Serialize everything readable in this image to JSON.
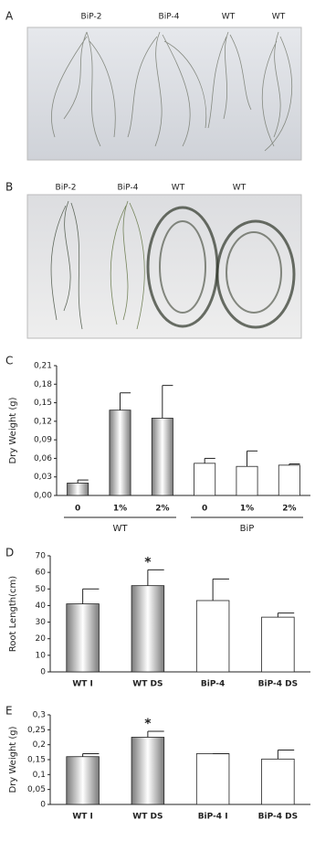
{
  "photo_panels": [
    {
      "letter": "A",
      "labels": [
        "BiP-2",
        "BiP-4",
        "WT",
        "WT"
      ]
    },
    {
      "letter": "B",
      "labels": [
        "BiP-2",
        "BiP-4",
        "WT",
        "WT"
      ]
    }
  ],
  "chart_data": [
    {
      "type": "bar",
      "panel_label": "C",
      "ylabel": "Dry Weight (g)",
      "categories": [
        "0",
        "1%",
        "2%",
        "0",
        "1%",
        "2%"
      ],
      "groups": [
        "WT",
        "BiP"
      ],
      "values": [
        0.02,
        0.138,
        0.125,
        0.052,
        0.047,
        0.049
      ],
      "errors": [
        0.005,
        0.028,
        0.053,
        0.008,
        0.025,
        0.002
      ],
      "colors": [
        "#7a7a7a",
        "#7a7a7a",
        "#7a7a7a",
        "#ffffff",
        "#ffffff",
        "#ffffff"
      ],
      "ylim": [
        0,
        0.21
      ],
      "yticks": [
        {
          "value": 0,
          "label": "0,00"
        },
        {
          "value": 0.03,
          "label": "0,03"
        },
        {
          "value": 0.06,
          "label": "0,06"
        },
        {
          "value": 0.09,
          "label": "0,09"
        },
        {
          "value": 0.12,
          "label": "0,12"
        },
        {
          "value": 0.15,
          "label": "0,15"
        },
        {
          "value": 0.18,
          "label": "0,18"
        },
        {
          "value": 0.21,
          "label": "0,21"
        }
      ]
    },
    {
      "type": "bar",
      "panel_label": "D",
      "ylabel": "Root Length(cm)",
      "categories": [
        "WT I",
        "WT DS",
        "BiP-4",
        "BiP-4 DS"
      ],
      "values": [
        41,
        52,
        43,
        33
      ],
      "errors": [
        9,
        9.5,
        13,
        2.5
      ],
      "colors": [
        "#7a7a7a",
        "#7a7a7a",
        "#ffffff",
        "#ffffff"
      ],
      "annotations": [
        {
          "text": "*",
          "category": "WT DS"
        }
      ],
      "ylim": [
        0,
        70
      ],
      "yticks": [
        0,
        10,
        20,
        30,
        40,
        50,
        60,
        70
      ]
    },
    {
      "type": "bar",
      "panel_label": "E",
      "ylabel": "Dry Weight (g)",
      "categories": [
        "WT I",
        "WT DS",
        "BiP-4 I",
        "BiP-4 DS"
      ],
      "values": [
        0.16,
        0.225,
        0.17,
        0.152
      ],
      "errors": [
        0.01,
        0.02,
        0,
        0.03
      ],
      "colors": [
        "#7a7a7a",
        "#7a7a7a",
        "#ffffff",
        "#ffffff"
      ],
      "annotations": [
        {
          "text": "*",
          "category": "WT DS"
        }
      ],
      "ylim": [
        0,
        0.3
      ],
      "yticks": [
        0,
        {
          "value": 0.05,
          "label": "0,05"
        },
        {
          "value": 0.1,
          "label": "0,1"
        },
        {
          "value": 0.15,
          "label": "0,15"
        },
        {
          "value": 0.2,
          "label": "0,2"
        },
        {
          "value": 0.25,
          "label": "0,25"
        },
        {
          "value": 0.3,
          "label": "0,3"
        }
      ]
    }
  ]
}
